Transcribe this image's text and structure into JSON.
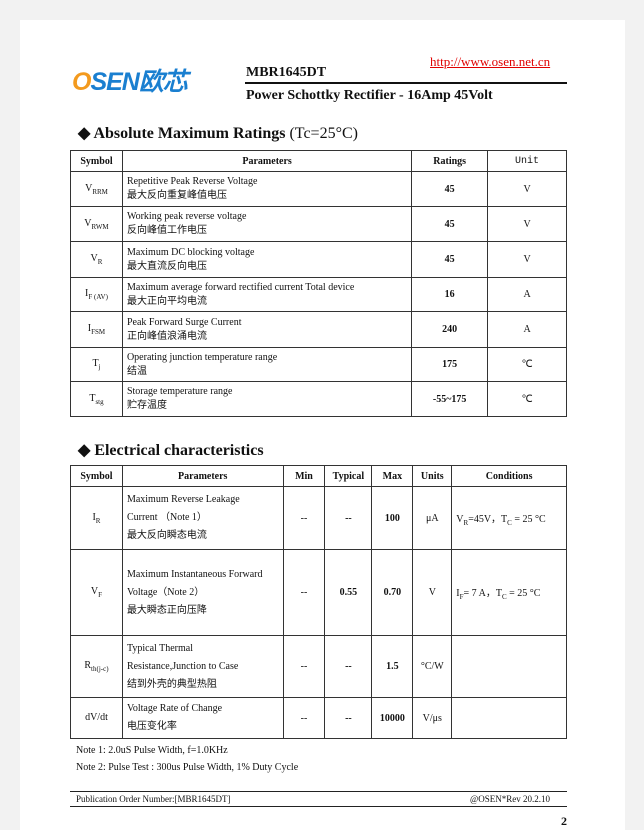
{
  "header": {
    "logo_text": "OSEN欧芯",
    "url": "http://www.osen.net.cn",
    "model": "MBR1645DT",
    "subtitle": "Power Schottky Rectifier - 16Amp 45Volt"
  },
  "amr": {
    "title": "Absolute Maximum Ratings",
    "cond": "(Tc=25°C)",
    "headers": [
      "Symbol",
      "Parameters",
      "Ratings",
      "Unit"
    ],
    "rows": [
      {
        "sym": "V",
        "sub": "RRM",
        "en": "Repetitive Peak Reverse Voltage",
        "cn": "最大反向重复峰值电压",
        "rating": "45",
        "unit": "V"
      },
      {
        "sym": "V",
        "sub": "RWM",
        "en": "Working peak reverse voltage",
        "cn": "反向峰值工作电压",
        "rating": "45",
        "unit": "V"
      },
      {
        "sym": "V",
        "sub": "R",
        "en": "Maximum DC blocking voltage",
        "cn": "最大直流反向电压",
        "rating": "45",
        "unit": "V"
      },
      {
        "sym": "I",
        "sub": "F (AV)",
        "en": "Maximum average forward rectified current Total device",
        "cn": "最大正向平均电流",
        "rating": "16",
        "unit": "A"
      },
      {
        "sym": "I",
        "sub": "FSM",
        "en": "Peak Forward Surge Current",
        "cn": "正向峰值浪涌电流",
        "rating": "240",
        "unit": "A"
      },
      {
        "sym": "T",
        "sub": "j",
        "en": "Operating junction temperature range",
        "cn": "结温",
        "rating": "175",
        "unit": "℃"
      },
      {
        "sym": "T",
        "sub": "stg",
        "en": "Storage temperature range",
        "cn": "贮存温度",
        "rating": "-55~175",
        "unit": "℃"
      }
    ]
  },
  "ec": {
    "title": "Electrical characteristics",
    "headers": [
      "Symbol",
      "Parameters",
      "Min",
      "Typical",
      "Max",
      "Units",
      "Conditions"
    ],
    "rows": [
      {
        "sym": "I",
        "sub": "R",
        "l1": "Maximum Reverse Leakage",
        "l2": "Current （Note 1）",
        "cn": "最大反向瞬态电流",
        "min": "--",
        "typ": "--",
        "max": "100",
        "unit": "μA",
        "cond": "V_R=45V，T_C = 25 °C"
      },
      {
        "sym": "V",
        "sub": "F",
        "l1": "Maximum Instantaneous Forward",
        "l2": "Voltage（Note 2）",
        "cn": "最大瞬态正向压降",
        "min": "--",
        "typ": "0.55",
        "max": "0.70",
        "unit": "V",
        "cond": "I_F= 7 A，T_C = 25 °C"
      },
      {
        "sym": "R",
        "sub": "th(j-c)",
        "l1": "Typical Thermal",
        "l2": "Resistance,Junction to Case",
        "cn": "结到外壳的典型热阻",
        "min": "--",
        "typ": "--",
        "max": "1.5",
        "unit": "°C/W",
        "cond": ""
      },
      {
        "sym": "dV/dt",
        "sub": "",
        "l1": "Voltage Rate of Change",
        "l2": "",
        "cn": "电压变化率",
        "min": "--",
        "typ": "--",
        "max": "10000",
        "unit": "V/μs",
        "cond": ""
      }
    ]
  },
  "notes": [
    "Note 1: 2.0uS Pulse Width, f=1.0KHz",
    "Note 2: Pulse Test : 300us Pulse Width, 1% Duty Cycle"
  ],
  "footer": {
    "left": "Publication Order Number:[MBR1645DT]",
    "right": "@OSEN*Rev 20.2.10",
    "page": "2"
  }
}
